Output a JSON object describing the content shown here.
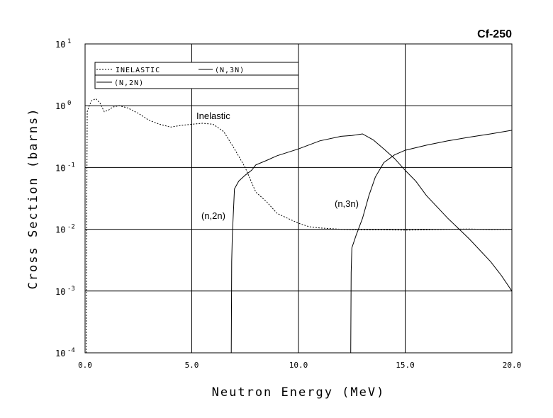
{
  "chart_data": {
    "type": "line",
    "title": "Cf-250",
    "xlabel": "Neutron Energy (MeV)",
    "ylabel": "Cross Section (barns)",
    "xlim": [
      0,
      20
    ],
    "ylim": [
      0.0001,
      10
    ],
    "yscale": "log",
    "grid": true,
    "legend_position": "top-left",
    "x_ticks": [
      "0.0",
      "5.0",
      "10.0",
      "15.0",
      "20.0"
    ],
    "y_ticks": [
      {
        "base": "10",
        "exp": "1"
      },
      {
        "base": "10",
        "exp": "0"
      },
      {
        "base": "10",
        "exp": "-1"
      },
      {
        "base": "10",
        "exp": "-2"
      },
      {
        "base": "10",
        "exp": "-3"
      },
      {
        "base": "10",
        "exp": "-4"
      }
    ],
    "legend": [
      "INELASTIC",
      "(N,3N)",
      "(N,2N)"
    ],
    "annotations": [
      "Inelastic",
      "(n,2n)",
      "(n,3n)"
    ],
    "series": [
      {
        "name": "INELASTIC",
        "style": "dashed",
        "x": [
          0.05,
          0.1,
          0.2,
          0.3,
          0.5,
          0.7,
          0.9,
          1.1,
          1.3,
          1.6,
          2.0,
          2.5,
          3.0,
          3.5,
          4.0,
          4.5,
          5.0,
          5.5,
          6.0,
          6.5,
          7.0,
          7.5,
          8.0,
          8.5,
          9.0,
          9.5,
          10.0,
          10.5,
          11.0,
          12.0,
          13.0,
          14.0,
          15.0,
          16.0,
          17.0,
          18.0,
          19.0,
          20.0
        ],
        "y": [
          0.0001,
          0.8,
          1.0,
          1.2,
          1.3,
          1.1,
          0.8,
          0.85,
          0.95,
          1.0,
          0.92,
          0.75,
          0.58,
          0.5,
          0.45,
          0.48,
          0.5,
          0.52,
          0.5,
          0.38,
          0.2,
          0.1,
          0.04,
          0.028,
          0.018,
          0.015,
          0.0125,
          0.011,
          0.0105,
          0.01,
          0.0098,
          0.0098,
          0.0097,
          0.0098,
          0.01,
          0.0101,
          0.0099,
          0.01
        ]
      },
      {
        "name": "(N,2N)",
        "style": "solid",
        "x": [
          6.85,
          6.87,
          6.9,
          7.0,
          7.2,
          7.5,
          7.8,
          8.0,
          8.5,
          9.0,
          10.0,
          11.0,
          12.0,
          12.5,
          13.0,
          13.5,
          14.0,
          14.5,
          15.0,
          15.5,
          16.0,
          17.0,
          18.0,
          19.0,
          19.5,
          20.0
        ],
        "y": [
          0.0001,
          0.003,
          0.008,
          0.045,
          0.06,
          0.075,
          0.09,
          0.11,
          0.13,
          0.155,
          0.2,
          0.27,
          0.32,
          0.33,
          0.35,
          0.28,
          0.2,
          0.14,
          0.09,
          0.06,
          0.035,
          0.015,
          0.007,
          0.003,
          0.0018,
          0.001
        ]
      },
      {
        "name": "(N,3N)",
        "style": "solid",
        "x": [
          12.45,
          12.47,
          12.5,
          12.7,
          13.0,
          13.3,
          13.6,
          14.0,
          14.5,
          15.0,
          16.0,
          17.0,
          18.0,
          19.0,
          20.0
        ],
        "y": [
          0.0001,
          0.002,
          0.005,
          0.008,
          0.015,
          0.035,
          0.07,
          0.12,
          0.16,
          0.19,
          0.23,
          0.27,
          0.31,
          0.35,
          0.4
        ]
      }
    ]
  }
}
